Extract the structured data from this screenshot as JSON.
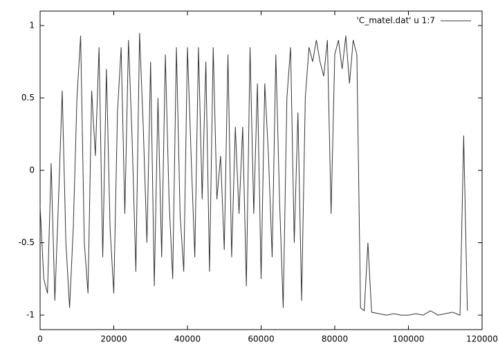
{
  "chart_data": {
    "type": "line",
    "x": [
      0,
      1000,
      2000,
      3000,
      4000,
      5000,
      6000,
      7000,
      8000,
      9000,
      10000,
      11000,
      12000,
      13000,
      14000,
      15000,
      16000,
      17000,
      18000,
      19000,
      20000,
      21000,
      22000,
      23000,
      24000,
      25000,
      26000,
      27000,
      28000,
      29000,
      30000,
      31000,
      32000,
      33000,
      34000,
      35000,
      36000,
      37000,
      38000,
      39000,
      40000,
      41000,
      42000,
      43000,
      44000,
      45000,
      46000,
      47000,
      48000,
      49000,
      50000,
      51000,
      52000,
      53000,
      54000,
      55000,
      56000,
      57000,
      58000,
      59000,
      60000,
      61000,
      62000,
      63000,
      64000,
      65000,
      66000,
      67000,
      68000,
      69000,
      70000,
      71000,
      72000,
      73000,
      74000,
      75000,
      76000,
      77000,
      78000,
      79000,
      80000,
      81000,
      82000,
      83000,
      84000,
      85000,
      86000,
      87000,
      88000,
      89000,
      90000,
      92000,
      94000,
      96000,
      98000,
      100000,
      102000,
      104000,
      106000,
      108000,
      110000,
      112000,
      114000,
      115000,
      116000
    ],
    "series": [
      {
        "name": "'C_matel.dat' u 1:7",
        "color": "#333333",
        "values": [
          -0.25,
          -0.75,
          -0.85,
          0.05,
          -0.9,
          -0.2,
          0.55,
          -0.5,
          -0.95,
          -0.4,
          0.5,
          0.93,
          -0.5,
          -0.85,
          0.55,
          0.1,
          0.85,
          -0.6,
          0.7,
          -0.4,
          -0.85,
          0.4,
          0.85,
          -0.3,
          0.9,
          0.2,
          -0.7,
          0.95,
          0.3,
          -0.5,
          0.75,
          -0.8,
          0.5,
          -0.6,
          0.8,
          -0.2,
          -0.75,
          0.85,
          -0.3,
          -0.7,
          0.85,
          0.1,
          -0.6,
          0.85,
          -0.2,
          0.75,
          -0.7,
          0.85,
          -0.2,
          0.1,
          -0.55,
          0.8,
          -0.6,
          0.3,
          -0.3,
          0.3,
          -0.8,
          0.85,
          -0.3,
          0.6,
          -0.75,
          0.6,
          0.1,
          -0.6,
          0.8,
          -0.2,
          -0.95,
          0.5,
          0.85,
          -0.5,
          0.4,
          -0.9,
          0.5,
          0.85,
          0.75,
          0.9,
          0.75,
          0.65,
          0.9,
          -0.3,
          0.8,
          0.9,
          0.7,
          0.93,
          0.6,
          0.9,
          0.8,
          -0.95,
          -0.97,
          -0.5,
          -0.98,
          -0.99,
          -1.0,
          -0.99,
          -1.0,
          -1.0,
          -0.99,
          -1.0,
          -0.97,
          -1.0,
          -0.99,
          -0.98,
          -1.0,
          0.24,
          -0.97
        ]
      }
    ],
    "xlim": [
      0,
      120000
    ],
    "xticks": [
      0,
      20000,
      40000,
      60000,
      80000,
      100000,
      120000
    ],
    "ylim": [
      -1.1,
      1.1
    ],
    "yticks": [
      -1,
      -0.5,
      0,
      0.5,
      1
    ],
    "legend": "upper right"
  }
}
